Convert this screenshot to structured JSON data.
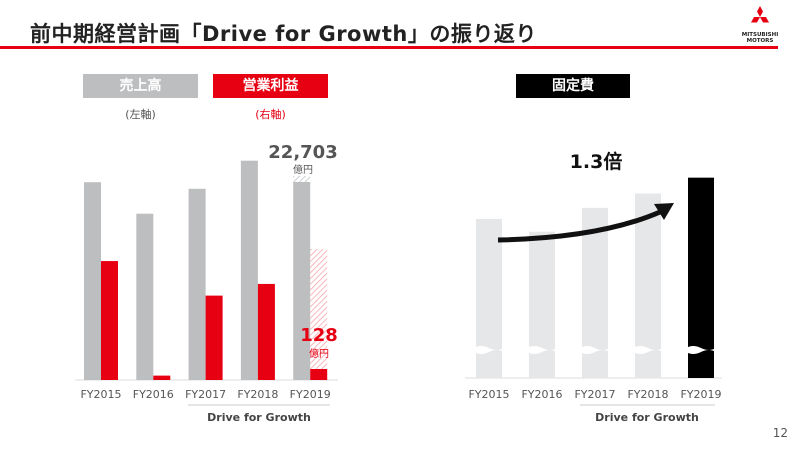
{
  "header": {
    "title": "前中期経営計画「Drive for Growth」の振り返り",
    "logo_text": [
      "MITSUBISHI",
      "MOTORS"
    ]
  },
  "left_chart": {
    "legend": [
      {
        "label": "売上高",
        "sub": "(左軸)",
        "color": "#bcbec0"
      },
      {
        "label": "営業利益",
        "sub": "(右軸)",
        "color": "#e60012"
      }
    ],
    "annotations": {
      "sales_value": "22,703",
      "sales_unit": "億円",
      "profit_value": "128",
      "profit_unit": "億円"
    },
    "bracket_label": "Drive for Growth"
  },
  "right_chart": {
    "legend": "固定費",
    "multiplier": "1.3倍",
    "bracket_label": "Drive for Growth"
  },
  "page_number": "12",
  "chart_data": [
    {
      "type": "bar",
      "categories": [
        "FY2015",
        "FY2016",
        "FY2017",
        "FY2018",
        "FY2019"
      ],
      "series": [
        {
          "name": "売上高",
          "unit": "億円",
          "values": [
            22678,
            19066,
            21924,
            25146,
            22703
          ]
        },
        {
          "name": "営業利益",
          "unit": "億円",
          "values": [
            1384,
            51,
            982,
            1118,
            128
          ],
          "fy2019_plan_hatched": 1500
        }
      ]
    },
    {
      "type": "bar",
      "title": "固定費",
      "categories": [
        "FY2015",
        "FY2016",
        "FY2017",
        "FY2018",
        "FY2019"
      ],
      "series": [
        {
          "name": "固定費",
          "unit": "index",
          "values": [
            1.0,
            0.92,
            1.07,
            1.16,
            1.26
          ]
        }
      ]
    }
  ]
}
